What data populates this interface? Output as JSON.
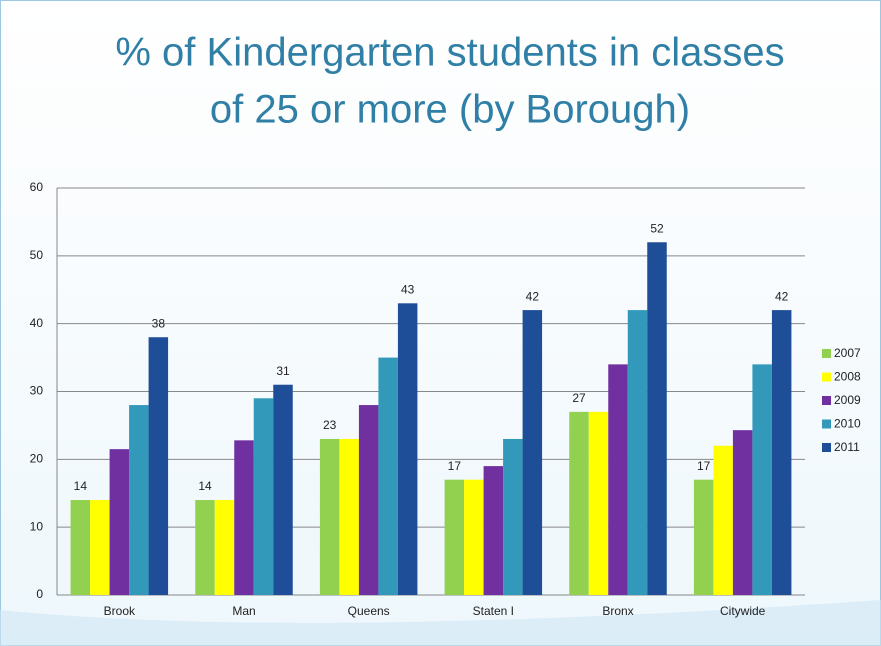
{
  "chart_data": {
    "type": "bar",
    "title": [
      "% of Kindergarten students in classes",
      "of 25 or more (by Borough)"
    ],
    "categories": [
      "Brook",
      "Man",
      "Queens",
      "Staten I",
      "Bronx",
      "Citywide"
    ],
    "series": [
      {
        "name": "2007",
        "color": "#92d050",
        "show_labels": true,
        "values": [
          14,
          14,
          23,
          17,
          27,
          17
        ]
      },
      {
        "name": "2008",
        "color": "#ffff00",
        "show_labels": false,
        "values": [
          14,
          14,
          23,
          17,
          27,
          22
        ]
      },
      {
        "name": "2009",
        "color": "#7030a0",
        "show_labels": false,
        "values": [
          21.5,
          22.8,
          28,
          19,
          34,
          24.3
        ]
      },
      {
        "name": "2010",
        "color": "#3399bb",
        "show_labels": false,
        "values": [
          28,
          29,
          35,
          23,
          42,
          34
        ]
      },
      {
        "name": "2011",
        "color": "#1f4e99",
        "show_labels": true,
        "values": [
          38,
          31,
          43,
          42,
          52,
          42
        ]
      }
    ],
    "ylim": [
      0,
      60
    ],
    "yticks": [
      0,
      10,
      20,
      30,
      40,
      50,
      60
    ],
    "grid": true,
    "legend": "right"
  }
}
